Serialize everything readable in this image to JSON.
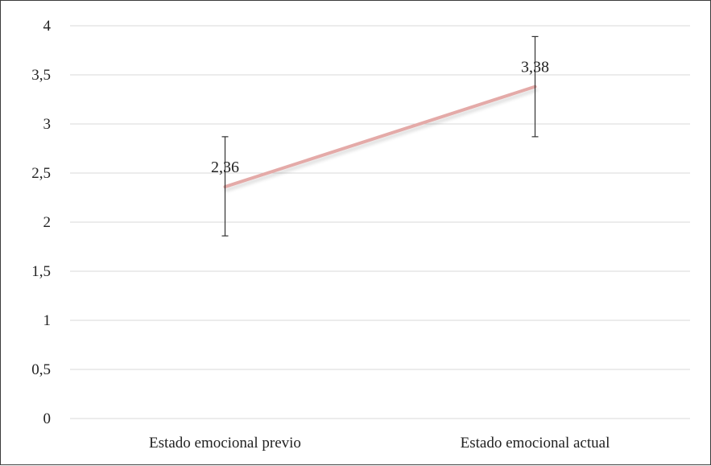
{
  "chart_data": {
    "type": "line",
    "categories": [
      "Estado emocional previo",
      "Estado emocional actual"
    ],
    "series": [
      {
        "values": [
          2.36,
          3.38
        ],
        "data_labels": [
          "2,36",
          "3,38"
        ],
        "error_bars": [
          [
            1.86,
            2.87
          ],
          [
            2.87,
            3.89
          ]
        ],
        "color": "#e4aaa8"
      }
    ],
    "y_ticks": [
      0,
      0.5,
      1,
      1.5,
      2,
      2.5,
      3,
      3.5,
      4
    ],
    "y_tick_labels": [
      "0",
      "0,5",
      "1",
      "1,5",
      "2",
      "2,5",
      "3",
      "3,5",
      "4"
    ],
    "ylim": [
      0,
      4
    ],
    "grid": true,
    "title": "",
    "xlabel": "",
    "ylabel": "",
    "colors": {
      "grid": "#d9d9d9",
      "error_bar": "#333333",
      "frame": "#3c3c3c"
    }
  }
}
